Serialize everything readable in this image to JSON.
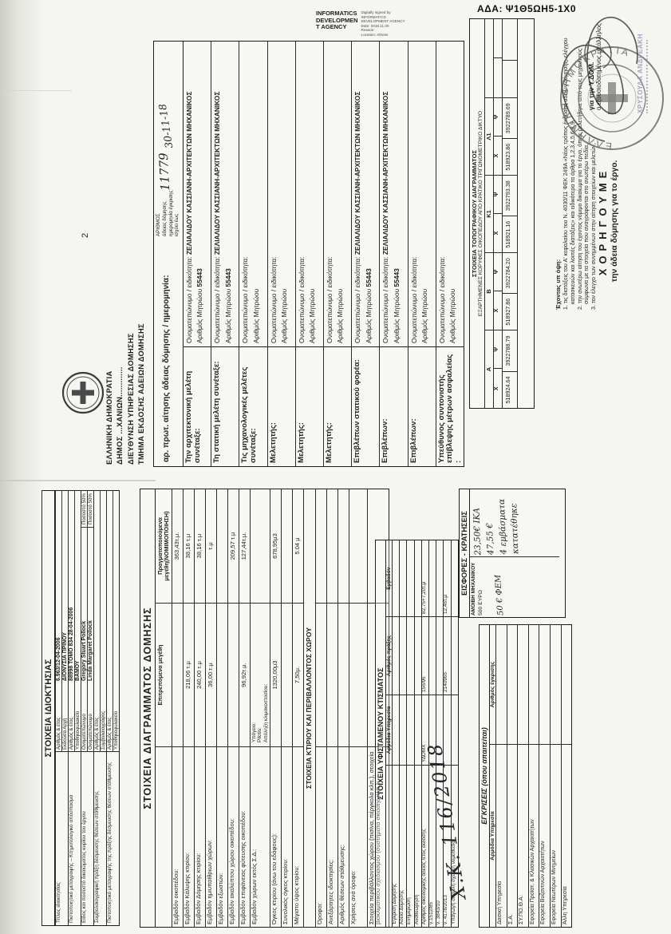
{
  "ada_line": "ΑΔΑ: Ψ1Θ5ΩΗ5-1Χ0",
  "page_number": "2",
  "informatics": {
    "agency_lines": [
      "INFORMATICS",
      "DEVELOPMEN",
      "T AGENCY"
    ],
    "signature_lines": [
      "Digitally signed by",
      "INFORMATICS",
      "DEVELOPMENT AGENCY",
      "Date: 2018.11.30",
      "Reason:",
      "Location: Athens"
    ]
  },
  "authority": {
    "lines": [
      "ΕΛΛΗΝΙΚΗ ΔΗΜΟΚΡΑΤΙΑ",
      "ΔΗΜΟΣ ...ΧΑΝΙΩΝ.............",
      "ΔΙΕΥΘΥΝΣΗ ΥΠΗΡΕΣΙΑΣ ΔΟΜΗΣΗΣ",
      "ΤΜΗΜΑ ΕΚΔΟΣΗΣ ΑΔΕΙΩΝ ΔΟΜΗΣΗΣ"
    ]
  },
  "protocol_row": {
    "label": "αρ. πρωτ. αίτησης άδειας δόμησης / ημερομηνία:",
    "handwritten_number": "11779",
    "handwritten_date": "30-11-18",
    "mini_labels": [
      "ΑΡΙΘΜΟΣ",
      "άδειας δόμησης",
      "ημερομηνία έγκρισης",
      "ισχύει έως"
    ]
  },
  "designers_table": {
    "name_label": "Ονοματεπώνυμο / ειδικότητα:",
    "registry_label": "Αριθμός Μητρώου",
    "rows": [
      {
        "label": "Την αρχιτεκτονική μελέτη συνέταξε:",
        "name": "ΖΕΛΙΑΛΙΔΟΥ ΚΑΣΣΙΑΝΗ-ΑΡΧΙΤΕΚΤΩΝ ΜΗΧΑΝΙΚΟΣ",
        "registry": "55443"
      },
      {
        "label": "Τη στατική μελέτη συνέταξε:",
        "name": "ΖΕΛΙΑΛΙΔΟΥ ΚΑΣΣΙΑΝΗ-ΑΡΧΙΤΕΚΤΩΝ ΜΗΧΑΝΙΚΟΣ",
        "registry": "55443"
      },
      {
        "label": "Τις μηχανολογικές μελέτες συνέταξε:",
        "name": "",
        "registry": ""
      },
      {
        "label": "Μελετητής:",
        "name": "",
        "registry": ""
      },
      {
        "label": "Μελετητής:",
        "name": "",
        "registry": ""
      },
      {
        "label": "Μελετητής:",
        "name": "",
        "registry": ""
      },
      {
        "label": "Επιβλέπων στατικού φορέα:",
        "name": "ΖΕΛΙΑΛΙΔΟΥ ΚΑΣΣΙΑΝΗ-ΑΡΧΙΤΕΚΤΩΝ ΜΗΧΑΝΙΚΟΣ",
        "registry": "55443"
      },
      {
        "label": "Επιβλέπων:",
        "name": "ΖΕΛΙΑΛΙΔΟΥ ΚΑΣΣΙΑΝΗ-ΑΡΧΙΤΕΚΤΩΝ ΜΗΧΑΝΙΚΟΣ",
        "registry": "55443"
      },
      {
        "label": "Επιβλέπων:",
        "name": "",
        "registry": ""
      },
      {
        "label": "Υπεύθυνος συντονιστής επίβλεψης μέτρων ασφαλείας :",
        "name": "",
        "registry": ""
      }
    ]
  },
  "coords_table": {
    "title1": "ΣΤΟΙΧΕΙΑ ΤΟΠΟΓΡΑΦΙΚΟΥ ΔΙΑΓΡΑΜΜΑΤΟΣ",
    "title2": "ΕΞΑΡΤΗΜΕΝΕΣ ΚΟΡΥΦΕΣ ΟΙΚΟΠΕΔΟΥ ΑΠΟ ΚΡΑΤΙΚΟ ΤΡΙΓΩΝΟΜΕΤΡΙΚΟ ΔΙΚΤΥΟ",
    "x_label": "Χ",
    "y_label": "Ψ",
    "points": [
      {
        "id": "Α",
        "x": "518924.64",
        "y": "3922788.79"
      },
      {
        "id": "Β",
        "x": "518927.86",
        "y": "3922784.20"
      },
      {
        "id": "Κ1",
        "x": "518921.16",
        "y": "3922793.38"
      },
      {
        "id": "Λ1",
        "x": "518923.86",
        "y": "3922789.69"
      }
    ]
  },
  "considering": {
    "intro": "Έχοντας υπ όψη:",
    "items": [
      "1. τις διατάξεις του Α' κεφαλαίου του Ν. 4030/11 ΦΕΚ 249Α «Νέος τρόπος έκδοσης αδειών δόμησης, ελέγχου κατασκευών και λοιπές διατάξεις» και ειδικότερα τα άρθρα 1,2,3,4,5,6,8,9,",
      "2. την ανωτέρω αίτηση του έχοντος νόμιμο δικαίωμα για το έργο, όπως μελετήθηκε από τους μηχανικούς σύμφωνα με τα στοιχεία που αναγράφονται στο ανωτέρω πεδία,",
      "3. τον έλεγχο των συνημμένων στην αίτηση στοιχείων και μελετών,"
    ]
  },
  "grant": {
    "title": "ΧΟΡΗΓΟΥΜΕ",
    "subtitle": "την άδεια δόμησης για το έργο."
  },
  "stamp": {
    "ring_text": "ΕΛΛΗΝΙΚΗ ΔΗΜΟΚΡΑΤΙΑ",
    "for_label": "για την Υ.ΔΟΜ.",
    "officer_label": "ο εξουσιοδοτημένος υπάλληλος",
    "officer_name": "ΧΡΥΣΟΥΛΑ ΑΝΔΡΕΑΚΗ"
  },
  "ownership_table": {
    "title": "ΣΤΟΙΧΕΙΑ ΙΔΙΟΚΤΗΣΙΑΣ",
    "rows": [
      {
        "label": "Τίτλος ιδιοκτησίας",
        "fields": [
          {
            "label": "Αριθμός & έτος",
            "value": "6.963/12-04-2006"
          },
          {
            "label": "Εκδούσα Αρχή",
            "value": "ΔΙΟΝΥΣΙΑ ΠΡΙΝΟΥ"
          }
        ]
      },
      {
        "label": "Πιστοποιητικό μεταγραφής – Κτηματολογικό απόσπασμα",
        "fields": [
          {
            "label": "Αριθμός & έτος",
            "value": "88998 ΤΟΜΟ 834 28-04-2006"
          },
          {
            "label": "Υποθηκοφυλακείο",
            "value": "ΒΑΜΟΥ"
          }
        ]
      },
      {
        "label": "Είδος και ποσοστό δικαιώματος κυρίου του έργου",
        "fields": [
          {
            "label": "Ονοματεπώνυμο",
            "value": "Gregory Stuart Pollock",
            "pct": "Ποσοστό 50%"
          },
          {
            "label": "Ονοματεπώνυμο",
            "value": "Linda Margaret Pollock",
            "pct": "Ποσοστό 50%"
          }
        ]
      },
      {
        "label": "Συμβολαιογραφική πράξη δέσμευσης θέσεων στάθμευσης",
        "fields": [
          {
            "label": "Αριθμός & έτος",
            "value": ""
          },
          {
            "label": "Συμβολαιογράφος",
            "value": ""
          }
        ]
      },
      {
        "label": "Πιστοποιητικό μεταγραφής της πράξης δέσμευσης θέσεων στάθμευσης",
        "fields": [
          {
            "label": "Αριθμός & έτος",
            "value": ""
          },
          {
            "label": "Υποθηκοφυλακείο",
            "value": ""
          }
        ]
      }
    ]
  },
  "diagram_table": {
    "title": "ΣΤΟΙΧΕΙΑ ΔΙΑΓΡΑΜΜΑΤΟΣ ΔΟΜΗΣΗΣ",
    "col_allowed": "Επιτρεπόμενα μεγέθη",
    "col_actual": "Πραγματοποιούμενα μεγέθη(ΝΟΜΙΜΟΠΟΙΗΣΗ)",
    "rows": [
      {
        "label": "Εμβαδόν οικοπέδου:",
        "allowed": "",
        "actual": "363,43τ.μ."
      },
      {
        "label": "Εμβαδόν Κάλυψης κτιρίου:",
        "allowed": "218,06 τ.μ",
        "actual": "38,16 τ.μ"
      },
      {
        "label": "Εμβαδόν Δόμησης κτιρίου:",
        "allowed": "240,00 τ.μ",
        "actual": "38,16 τ.μ"
      },
      {
        "label": "Εμβαδόν ημιυπαίθριων χώρων:",
        "allowed": "36,00 τ.μ",
        "actual": "τ.μ"
      },
      {
        "label": "Εμβαδόν εξωστών:",
        "allowed": "",
        "actual": ""
      },
      {
        "label": "Εμβαδόν ακαλύπτου χώρου οικοπέδου:",
        "allowed": "",
        "actual": "209,57 τ.μ"
      },
      {
        "label": "Εμβαδόν επιφάνειας φύτευσης οικοπέδου:",
        "allowed": "96,92τ.μ.",
        "actual": "127,44τ.μ."
      },
      {
        "label": "Εμβαδόν χώρων εκτός Σ.Δ.:",
        "allowed": "",
        "actual": "",
        "subs": [
          "Υπόγειο:",
          "Pilotis:",
          "Απόληξη κλιμακοστασίου:"
        ]
      },
      {
        "label": "Όγκος κτιρίου (άνω του εδάφους):",
        "allowed": "1320,00μ3",
        "actual": "678,95μ3"
      },
      {
        "label": "Συνολικός όγκος κτιρίου:",
        "allowed": "",
        "actual": ""
      },
      {
        "label": "Μέγιστο ύψος κτιρίου:",
        "allowed": "7,50μ.",
        "actual": "5.04 μ"
      }
    ],
    "section": "ΣΤΟΙΧΕΙΑ ΚΤΙΡΙΟΥ ΚΑΙ ΠΕΡΙΒΑΛΛΟΝΤΟΣ ΧΩΡΟΥ",
    "rows2": [
      {
        "label": "Όροφοι:"
      },
      {
        "label": "Ανεξάρτητες ιδιοκτησίες:"
      },
      {
        "label": "Αριθμός θέσεων στάθμευσης:"
      },
      {
        "label": "Χρήσεις ανά όροφο:"
      },
      {
        "label": "Στοιχεία περιβάλλοντος χώρου (πισίνα, πέργκολα κλπ.), στοιχεία βιοκλιματικού σχεδιασμού (συστήματα σκίασης κλπ.):"
      }
    ]
  },
  "existing_table": {
    "title": "ΣΤΟΙΧΕΙΑ ΥΦΙΣΤΑΜΕΝΟΥ ΚΤΙΣΜΑΤΟΣ",
    "cols": [
      "Αρμόδια Υπηρεσία",
      "Αριθμός πράξης",
      "Εμβαδόν"
    ],
    "rows": [
      {
        "label": "Έγκριση Δόμησης",
        "service": "",
        "act": "",
        "area": ""
      },
      {
        "label": "Άδεια Δόμησης",
        "service": "",
        "act": "",
        "area": ""
      },
      {
        "label": "Ενημέρωση",
        "service": "",
        "act": "",
        "area": ""
      },
      {
        "label": "Αναθεώρηση",
        "service": "",
        "act": "",
        "area": ""
      },
      {
        "label": "Αριθμός οικοδομικής άδειας /έτος έκδοσης",
        "service": "ΥΔΟΜΧ",
        "act": "156/96",
        "area": "82,75+7,20τ.μ"
      },
      {
        "label": "ν.1512/85",
        "service": "",
        "act": "",
        "area": ""
      },
      {
        "label": "ν. 3843/10",
        "service": "",
        "act": "",
        "area": ""
      },
      {
        "label": "ν. 4178/2013",
        "service": "",
        "act": "2140966",
        "area": "12,46τ.μ"
      },
      {
        "label": "Υπαγωγή σε άλλη σχετική νομοθεσία",
        "service": "",
        "act": "",
        "area": ""
      }
    ]
  },
  "handwritten_note": "Χ.Κ.  116/2018",
  "approvals_table": {
    "title": "ΕΓΚΡΙΣΕΙΣ (όπου απαιτείται)",
    "cols": [
      "Αρμόδια Υπηρεσία",
      "Αριθμός έγκρισης"
    ],
    "rows": [
      "Δασική Υπηρεσία",
      "Σ.Α.",
      "ΣΥ.ΠΟ.Θ.Α.",
      "Εφορεία Προϊστ. & Κλασικών Αρχαιοτήτων",
      "Εφορεία Βυζαντινών Αρχαιοτήτων",
      "Εφορεία Νεωτέρων Μνημείων",
      "Άλλη Υπηρεσία"
    ]
  },
  "fees_table": {
    "title": "ΕΙΣΦΟΡΕΣ - ΚΡΑΤΗΣΕΙΣ",
    "fee_label": "ΑΜΟΙΒΗ ΜΗΧΑΝΙΚΟΥ",
    "fee_amount": "500 ΕΥΡΩ",
    "handwritten_left": "50 € ΦΕΜ",
    "handwritten": [
      "23,50€ ΙΚΑ",
      "47,55 €",
      "4 εμβάσματα",
      "κατατέθηκε"
    ]
  }
}
